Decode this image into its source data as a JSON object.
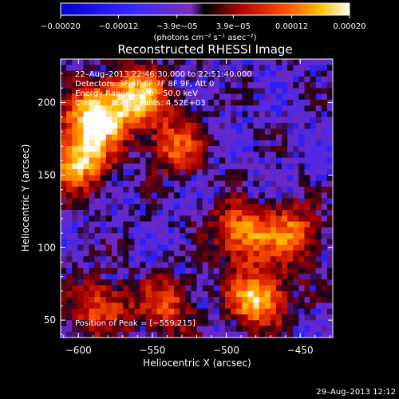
{
  "chart_data": {
    "type": "heatmap",
    "title": "Reconstructed RHESSI Image",
    "xlabel": "Heliocentric X (arcsec)",
    "ylabel": "Heliocentric Y (arcsec)",
    "xlim": [
      -612,
      -428
    ],
    "ylim": [
      38,
      230
    ],
    "x_ticks": [
      -600,
      -550,
      -500,
      -450
    ],
    "y_ticks": [
      50,
      100,
      150,
      200
    ],
    "x_tick_labels": [
      "−600",
      "−550",
      "−500",
      "−450"
    ],
    "y_tick_labels": [
      "50",
      "100",
      "150",
      "200"
    ],
    "colorbar": {
      "range": [
        -0.0002,
        0.0002
      ],
      "ticks": [
        -0.0002,
        -0.00012,
        -3.9e-05,
        3.9e-05,
        0.00012,
        0.0002
      ],
      "tick_labels": [
        "−0.00020",
        "−0.00012",
        "−3.9e−05",
        "3.9e−05",
        "0.00012",
        "0.00020"
      ],
      "unit_label": "(photons cm⁻² s⁻¹ asec⁻²)"
    },
    "info": {
      "time_range": "22–Aug–2013 22:46:30.000 to 22:51:40.000",
      "detectors": "Detectors: 3F 4F 6F 7F 8F 9F, Att 0",
      "energy": "Energy Range: 25.0 – 50.0 keV",
      "clean": "Clean      Total counts: 4.52E+03"
    },
    "peak_label": "Position of Peak = [−559,215]",
    "peak": [
      -559,
      215
    ],
    "bright_sources": [
      {
        "x": -588,
        "y": 190,
        "strength": 1.0
      },
      {
        "x": -600,
        "y": 160,
        "strength": 0.85
      },
      {
        "x": -560,
        "y": 205,
        "strength": 0.8
      },
      {
        "x": -535,
        "y": 170,
        "strength": 0.55
      },
      {
        "x": -490,
        "y": 110,
        "strength": 0.7
      },
      {
        "x": -478,
        "y": 65,
        "strength": 0.85
      },
      {
        "x": -455,
        "y": 110,
        "strength": 0.6
      },
      {
        "x": -540,
        "y": 60,
        "strength": 0.5
      },
      {
        "x": -585,
        "y": 60,
        "strength": 0.55
      }
    ]
  },
  "footer": {
    "timestamp": "29–Aug–2013 12:12"
  },
  "colors": {
    "background": "#000000",
    "text": "#ffffff"
  }
}
